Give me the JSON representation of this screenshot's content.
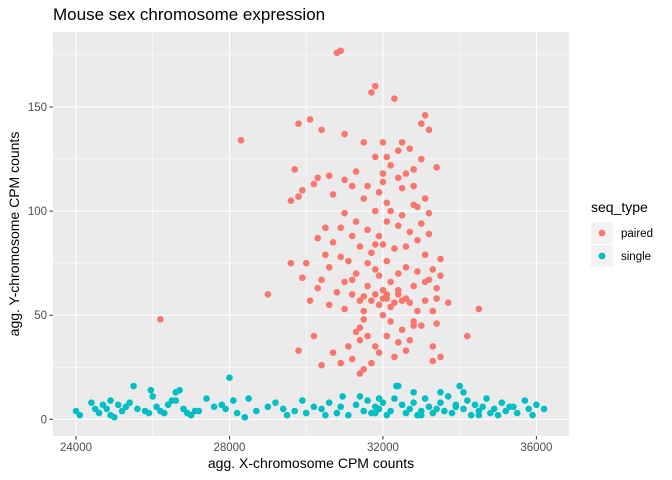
{
  "chart_data": {
    "type": "scatter",
    "title": "Mouse sex chromosome expression",
    "xlabel": "agg. X-chromosome CPM counts",
    "ylabel": "agg. Y-chromosome CPM counts",
    "xlim": [
      23400,
      36850
    ],
    "ylim": [
      -8,
      186
    ],
    "x_ticks": [
      24000,
      28000,
      32000,
      36000
    ],
    "x_tick_labels": [
      "24000",
      "28000",
      "32000",
      "36000"
    ],
    "y_ticks": [
      0,
      50,
      100,
      150
    ],
    "y_tick_labels": [
      "0",
      "50",
      "100",
      "150"
    ],
    "grid": true,
    "legend": {
      "title": "seq_type",
      "position": "right"
    },
    "series": [
      {
        "name": "paired",
        "color": "#f8766d",
        "points": [
          [
            30800,
            176
          ],
          [
            30900,
            177
          ],
          [
            31800,
            160
          ],
          [
            31700,
            157
          ],
          [
            32300,
            154
          ],
          [
            33100,
            146
          ],
          [
            33000,
            142
          ],
          [
            29800,
            142
          ],
          [
            30100,
            144
          ],
          [
            28300,
            134
          ],
          [
            31500,
            133
          ],
          [
            32000,
            133
          ],
          [
            32500,
            133
          ],
          [
            33200,
            139
          ],
          [
            32700,
            130
          ],
          [
            32400,
            129
          ],
          [
            32100,
            126
          ],
          [
            31800,
            126
          ],
          [
            31000,
            137
          ],
          [
            30400,
            139
          ],
          [
            32200,
            122
          ],
          [
            33000,
            125
          ],
          [
            32600,
            118
          ],
          [
            31300,
            119
          ],
          [
            32400,
            116
          ],
          [
            32000,
            114
          ],
          [
            31200,
            112
          ],
          [
            33400,
            121
          ],
          [
            29700,
            120
          ],
          [
            30600,
            117
          ],
          [
            30200,
            113
          ],
          [
            29800,
            107
          ],
          [
            29900,
            110
          ],
          [
            30300,
            116
          ],
          [
            29600,
            105
          ],
          [
            30700,
            108
          ],
          [
            31000,
            115
          ],
          [
            31600,
            112
          ],
          [
            32500,
            111
          ],
          [
            32800,
            112
          ],
          [
            31900,
            109
          ],
          [
            31500,
            106
          ],
          [
            32100,
            104
          ],
          [
            33100,
            106
          ],
          [
            32900,
            102
          ],
          [
            31800,
            100
          ],
          [
            31300,
            95
          ],
          [
            31000,
            99
          ],
          [
            32200,
            100
          ],
          [
            32500,
            98
          ],
          [
            32800,
            103
          ],
          [
            33200,
            99
          ],
          [
            33000,
            94
          ],
          [
            32400,
            93
          ],
          [
            31600,
            91
          ],
          [
            30900,
            92
          ],
          [
            30500,
            92
          ],
          [
            31200,
            88
          ],
          [
            31900,
            88
          ],
          [
            32100,
            95
          ],
          [
            32700,
            90
          ],
          [
            33200,
            89
          ],
          [
            32000,
            84
          ],
          [
            31400,
            83
          ],
          [
            30700,
            85
          ],
          [
            30300,
            87
          ],
          [
            31700,
            80
          ],
          [
            32300,
            82
          ],
          [
            32900,
            86
          ],
          [
            33100,
            79
          ],
          [
            31100,
            76
          ],
          [
            31600,
            75
          ],
          [
            32100,
            76
          ],
          [
            32600,
            73
          ],
          [
            30000,
            75
          ],
          [
            30500,
            79
          ],
          [
            30900,
            78
          ],
          [
            31800,
            72
          ],
          [
            32400,
            70
          ],
          [
            32900,
            71
          ],
          [
            33300,
            72
          ],
          [
            33500,
            77
          ],
          [
            29600,
            75
          ],
          [
            30600,
            73
          ],
          [
            31300,
            70
          ],
          [
            31900,
            69
          ],
          [
            32200,
            66
          ],
          [
            32800,
            64
          ],
          [
            33100,
            66
          ],
          [
            29900,
            68
          ],
          [
            30400,
            67
          ],
          [
            31000,
            66
          ],
          [
            31600,
            64
          ],
          [
            32400,
            62
          ],
          [
            33500,
            69
          ],
          [
            33400,
            63
          ],
          [
            31200,
            60
          ],
          [
            31800,
            60
          ],
          [
            32100,
            58
          ],
          [
            32600,
            58
          ],
          [
            33100,
            57
          ],
          [
            29000,
            60
          ],
          [
            30300,
            63
          ],
          [
            30800,
            61
          ],
          [
            31400,
            57
          ],
          [
            31900,
            55
          ],
          [
            32200,
            54
          ],
          [
            32700,
            56
          ],
          [
            33300,
            52
          ],
          [
            30100,
            57
          ],
          [
            31500,
            52
          ],
          [
            32000,
            50
          ],
          [
            32900,
            52
          ],
          [
            33400,
            58
          ],
          [
            33700,
            56
          ],
          [
            34500,
            53
          ],
          [
            31000,
            53
          ],
          [
            31500,
            48
          ],
          [
            32200,
            47
          ],
          [
            32800,
            47
          ],
          [
            33400,
            46
          ],
          [
            26200,
            48
          ],
          [
            31400,
            44
          ],
          [
            32500,
            43
          ],
          [
            33000,
            45
          ],
          [
            31600,
            40
          ],
          [
            32100,
            40
          ],
          [
            32700,
            38
          ],
          [
            30200,
            40
          ],
          [
            34200,
            40
          ],
          [
            31100,
            35
          ],
          [
            31800,
            35
          ],
          [
            32400,
            37
          ],
          [
            33300,
            35
          ],
          [
            29800,
            33
          ],
          [
            30700,
            32
          ],
          [
            32300,
            30
          ],
          [
            33500,
            30
          ],
          [
            30400,
            26
          ],
          [
            31200,
            29
          ],
          [
            31700,
            27
          ],
          [
            31900,
            32
          ],
          [
            32600,
            33
          ],
          [
            30900,
            27
          ],
          [
            33300,
            28
          ],
          [
            31500,
            24
          ],
          [
            31400,
            22
          ],
          [
            32000,
            62
          ],
          [
            31700,
            57
          ],
          [
            31500,
            59
          ],
          [
            32300,
            56
          ],
          [
            30600,
            55
          ],
          [
            33200,
            67
          ],
          [
            31200,
            67
          ],
          [
            32800,
            45
          ],
          [
            31300,
            42
          ],
          [
            32600,
            83
          ],
          [
            31800,
            84
          ],
          [
            32000,
            118
          ],
          [
            31900,
            109
          ],
          [
            32100,
            60
          ],
          [
            32000,
            58
          ],
          [
            32400,
            60
          ],
          [
            32500,
            57
          ],
          [
            31400,
            38
          ],
          [
            32800,
            120
          ]
        ]
      },
      {
        "name": "single",
        "color": "#00bfc4",
        "points": [
          [
            24000,
            4
          ],
          [
            24100,
            2
          ],
          [
            24400,
            8
          ],
          [
            24500,
            5
          ],
          [
            24600,
            3
          ],
          [
            24700,
            7
          ],
          [
            24800,
            5
          ],
          [
            24900,
            9
          ],
          [
            24900,
            2
          ],
          [
            25100,
            7
          ],
          [
            25200,
            4
          ],
          [
            25300,
            6
          ],
          [
            25400,
            8
          ],
          [
            25500,
            16
          ],
          [
            25600,
            5
          ],
          [
            25800,
            4
          ],
          [
            25900,
            3
          ],
          [
            25950,
            14
          ],
          [
            26000,
            11
          ],
          [
            26100,
            6
          ],
          [
            26200,
            4
          ],
          [
            26300,
            3
          ],
          [
            26400,
            7
          ],
          [
            26500,
            9
          ],
          [
            26600,
            13
          ],
          [
            26700,
            14
          ],
          [
            26800,
            5
          ],
          [
            26900,
            3
          ],
          [
            27000,
            2
          ],
          [
            27200,
            4
          ],
          [
            27400,
            10
          ],
          [
            27600,
            6
          ],
          [
            27800,
            7
          ],
          [
            27900,
            5
          ],
          [
            28000,
            20
          ],
          [
            28100,
            9
          ],
          [
            28200,
            3
          ],
          [
            28400,
            1
          ],
          [
            28500,
            10
          ],
          [
            28700,
            4
          ],
          [
            29000,
            6
          ],
          [
            29200,
            8
          ],
          [
            29400,
            5
          ],
          [
            29500,
            2
          ],
          [
            29700,
            4
          ],
          [
            29900,
            9
          ],
          [
            30000,
            3
          ],
          [
            30200,
            6
          ],
          [
            30400,
            5
          ],
          [
            30600,
            8
          ],
          [
            30800,
            3
          ],
          [
            30900,
            6
          ],
          [
            31100,
            2
          ],
          [
            31300,
            7
          ],
          [
            31500,
            4
          ],
          [
            31600,
            9
          ],
          [
            31700,
            3
          ],
          [
            31800,
            6
          ],
          [
            31900,
            5
          ],
          [
            32000,
            8
          ],
          [
            32100,
            2
          ],
          [
            32200,
            4
          ],
          [
            32300,
            10
          ],
          [
            32400,
            16
          ],
          [
            32500,
            7
          ],
          [
            32600,
            3
          ],
          [
            32700,
            5
          ],
          [
            32800,
            8
          ],
          [
            32900,
            2
          ],
          [
            33000,
            4
          ],
          [
            33100,
            10
          ],
          [
            33200,
            6
          ],
          [
            33300,
            3
          ],
          [
            33400,
            5
          ],
          [
            33500,
            8
          ],
          [
            33600,
            4
          ],
          [
            33700,
            11
          ],
          [
            33800,
            3
          ],
          [
            33900,
            6
          ],
          [
            34000,
            16
          ],
          [
            34100,
            5
          ],
          [
            34200,
            9
          ],
          [
            34300,
            2
          ],
          [
            34400,
            7
          ],
          [
            34500,
            4
          ],
          [
            34600,
            6
          ],
          [
            34700,
            10
          ],
          [
            34800,
            3
          ],
          [
            34900,
            5
          ],
          [
            35000,
            2
          ],
          [
            35100,
            8
          ],
          [
            35200,
            4
          ],
          [
            35400,
            6
          ],
          [
            35500,
            3
          ],
          [
            35700,
            9
          ],
          [
            35800,
            5
          ],
          [
            35900,
            2
          ],
          [
            36000,
            7
          ],
          [
            36200,
            5
          ],
          [
            32350,
            16
          ],
          [
            31400,
            11
          ],
          [
            33900,
            7
          ],
          [
            34100,
            13
          ],
          [
            33500,
            13
          ],
          [
            32800,
            13
          ],
          [
            30950,
            11
          ],
          [
            31800,
            3
          ],
          [
            30500,
            2
          ],
          [
            34500,
            2
          ],
          [
            25000,
            1
          ],
          [
            26600,
            9
          ],
          [
            27100,
            4
          ],
          [
            31900,
            10
          ],
          [
            33000,
            2
          ],
          [
            35300,
            6
          ]
        ]
      }
    ]
  }
}
